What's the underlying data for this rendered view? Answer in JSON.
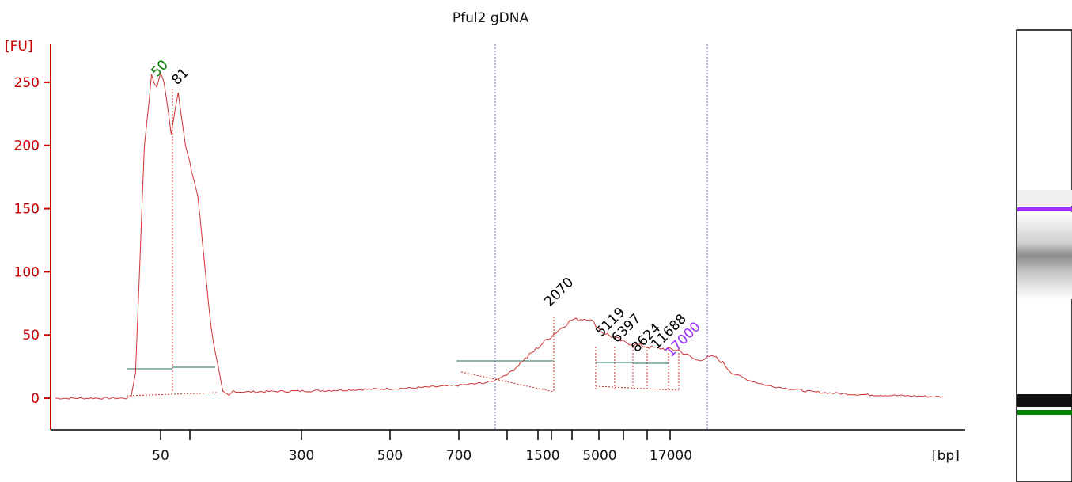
{
  "chart_data": {
    "type": "line",
    "title": "Pful2 gDNA",
    "ylabel": "[FU]",
    "xlabel": "[bp]",
    "ylim": [
      -25,
      280
    ],
    "yticks": [
      0,
      50,
      100,
      150,
      200,
      250
    ],
    "xticks": [
      "50",
      "300",
      "500",
      "700",
      "1500",
      "5000",
      "17000"
    ],
    "peak_labels": [
      {
        "text": "50",
        "color": "#008000"
      },
      {
        "text": "81",
        "color": "#000000"
      },
      {
        "text": "2070",
        "color": "#000000"
      },
      {
        "text": "5119",
        "color": "#000000"
      },
      {
        "text": "6397",
        "color": "#000000"
      },
      {
        "text": "8624",
        "color": "#000000"
      },
      {
        "text": "11688",
        "color": "#000000"
      },
      {
        "text": "17000",
        "color": "#9b30ff"
      }
    ],
    "series": [
      {
        "color": "#cc3333",
        "points": [
          [
            0,
            0
          ],
          [
            0.08,
            0
          ],
          [
            0.085,
            1
          ],
          [
            0.09,
            20
          ],
          [
            0.1,
            200
          ],
          [
            0.108,
            255
          ],
          [
            0.114,
            245
          ],
          [
            0.118,
            258
          ],
          [
            0.122,
            250
          ],
          [
            0.13,
            210
          ],
          [
            0.138,
            243
          ],
          [
            0.146,
            200
          ],
          [
            0.16,
            160
          ],
          [
            0.175,
            55
          ],
          [
            0.188,
            5
          ],
          [
            0.195,
            2
          ],
          [
            0.2,
            6
          ],
          [
            0.205,
            5
          ],
          [
            0.215,
            5
          ],
          [
            0.3,
            6
          ],
          [
            0.4,
            8
          ],
          [
            0.45,
            10
          ],
          [
            0.48,
            12
          ],
          [
            0.49,
            13
          ],
          [
            0.51,
            20
          ],
          [
            0.55,
            45
          ],
          [
            0.58,
            62
          ],
          [
            0.6,
            63
          ],
          [
            0.615,
            52
          ],
          [
            0.64,
            44
          ],
          [
            0.67,
            40
          ],
          [
            0.7,
            38
          ],
          [
            0.72,
            30
          ],
          [
            0.74,
            33
          ],
          [
            0.75,
            28
          ],
          [
            0.76,
            20
          ],
          [
            0.78,
            14
          ],
          [
            0.8,
            10
          ],
          [
            0.82,
            8
          ],
          [
            0.85,
            5
          ],
          [
            0.9,
            3
          ],
          [
            0.95,
            2
          ],
          [
            1.0,
            1
          ]
        ]
      }
    ],
    "regions": [
      "50-81",
      "2070",
      "5119-11688"
    ],
    "grid": false,
    "legend": "none"
  },
  "gel": {
    "bands": [
      {
        "name": "upper-marker",
        "color": "#9b30ff",
        "level": "17000"
      },
      {
        "name": "smear",
        "color": "#888888",
        "level": "2070"
      },
      {
        "name": "lower-marker",
        "color": "#008000",
        "level": "50"
      }
    ]
  }
}
